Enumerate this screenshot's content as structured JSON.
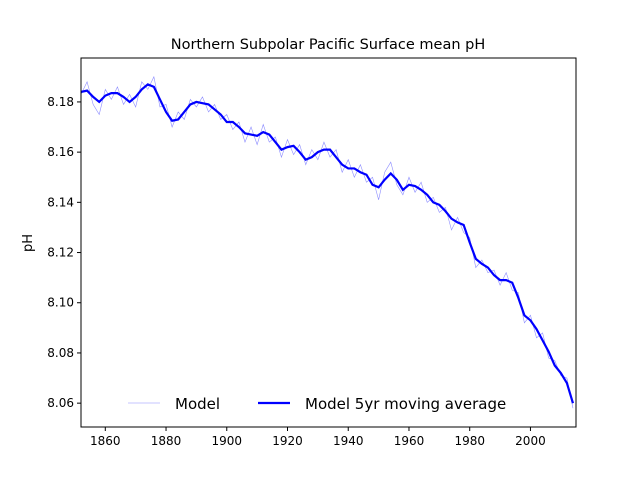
{
  "chart_data": {
    "type": "line",
    "title": "Northern Subpolar Pacific Surface mean pH",
    "y_label": "pH",
    "x": [
      1852,
      1854,
      1856,
      1858,
      1860,
      1862,
      1864,
      1866,
      1868,
      1870,
      1872,
      1874,
      1876,
      1878,
      1880,
      1882,
      1884,
      1886,
      1888,
      1890,
      1892,
      1894,
      1896,
      1898,
      1900,
      1902,
      1904,
      1906,
      1908,
      1910,
      1912,
      1914,
      1916,
      1918,
      1920,
      1922,
      1924,
      1926,
      1928,
      1930,
      1932,
      1934,
      1936,
      1938,
      1940,
      1942,
      1944,
      1946,
      1948,
      1950,
      1952,
      1954,
      1956,
      1958,
      1960,
      1962,
      1964,
      1966,
      1968,
      1970,
      1972,
      1974,
      1976,
      1978,
      1980,
      1982,
      1984,
      1986,
      1988,
      1990,
      1992,
      1994,
      1996,
      1998,
      2000,
      2002,
      2004,
      2006,
      2008,
      2010,
      2012,
      2014
    ],
    "series": [
      {
        "name": "Model",
        "color": "#0000ff",
        "width": 0.6,
        "opacity": 0.45,
        "values": [
          8.183,
          8.188,
          8.179,
          8.175,
          8.185,
          8.181,
          8.186,
          8.179,
          8.183,
          8.178,
          8.188,
          8.185,
          8.19,
          8.178,
          8.179,
          8.17,
          8.176,
          8.173,
          8.181,
          8.178,
          8.182,
          8.176,
          8.179,
          8.173,
          8.175,
          8.169,
          8.172,
          8.164,
          8.17,
          8.163,
          8.171,
          8.164,
          8.166,
          8.158,
          8.165,
          8.159,
          8.163,
          8.155,
          8.161,
          8.157,
          8.164,
          8.158,
          8.161,
          8.152,
          8.157,
          8.15,
          8.155,
          8.148,
          8.15,
          8.141,
          8.152,
          8.156,
          8.147,
          8.143,
          8.15,
          8.144,
          8.148,
          8.14,
          8.142,
          8.136,
          8.138,
          8.129,
          8.134,
          8.128,
          8.126,
          8.114,
          8.117,
          8.112,
          8.113,
          8.107,
          8.112,
          8.105,
          8.104,
          8.092,
          8.095,
          8.086,
          8.088,
          8.078,
          8.077,
          8.071,
          8.07,
          8.058
        ]
      },
      {
        "name": "Model 5yr moving average",
        "color": "#0000ff",
        "width": 2.2,
        "opacity": 1,
        "values": [
          8.184,
          8.1845,
          8.182,
          8.18,
          8.1825,
          8.1835,
          8.1835,
          8.182,
          8.18,
          8.182,
          8.185,
          8.187,
          8.186,
          8.181,
          8.176,
          8.1725,
          8.173,
          8.176,
          8.179,
          8.18,
          8.1795,
          8.179,
          8.177,
          8.175,
          8.172,
          8.172,
          8.17,
          8.1675,
          8.167,
          8.1665,
          8.168,
          8.167,
          8.164,
          8.161,
          8.162,
          8.1625,
          8.16,
          8.157,
          8.158,
          8.16,
          8.161,
          8.161,
          8.158,
          8.155,
          8.1535,
          8.1535,
          8.152,
          8.151,
          8.147,
          8.146,
          8.149,
          8.1515,
          8.149,
          8.145,
          8.147,
          8.1465,
          8.145,
          8.143,
          8.14,
          8.139,
          8.1365,
          8.1335,
          8.132,
          8.131,
          8.124,
          8.1175,
          8.1155,
          8.114,
          8.111,
          8.109,
          8.109,
          8.108,
          8.102,
          8.095,
          8.093,
          8.0895,
          8.085,
          8.0805,
          8.075,
          8.072,
          8.068,
          8.06
        ]
      }
    ],
    "xlim": [
      1852,
      2015
    ],
    "xticks": [
      1860,
      1880,
      1900,
      1920,
      1940,
      1960,
      1980,
      2000
    ],
    "ylim": [
      8.0505,
      8.1975
    ],
    "yticks": [
      {
        "value": 8.06,
        "label": "8.06"
      },
      {
        "value": 8.08,
        "label": "8.08"
      },
      {
        "value": 8.1,
        "label": "8.10"
      },
      {
        "value": 8.12,
        "label": "8.12"
      },
      {
        "value": 8.14,
        "label": "8.14"
      },
      {
        "value": 8.16,
        "label": "8.16"
      },
      {
        "value": 8.18,
        "label": "8.18"
      }
    ],
    "legend": "lower center"
  }
}
